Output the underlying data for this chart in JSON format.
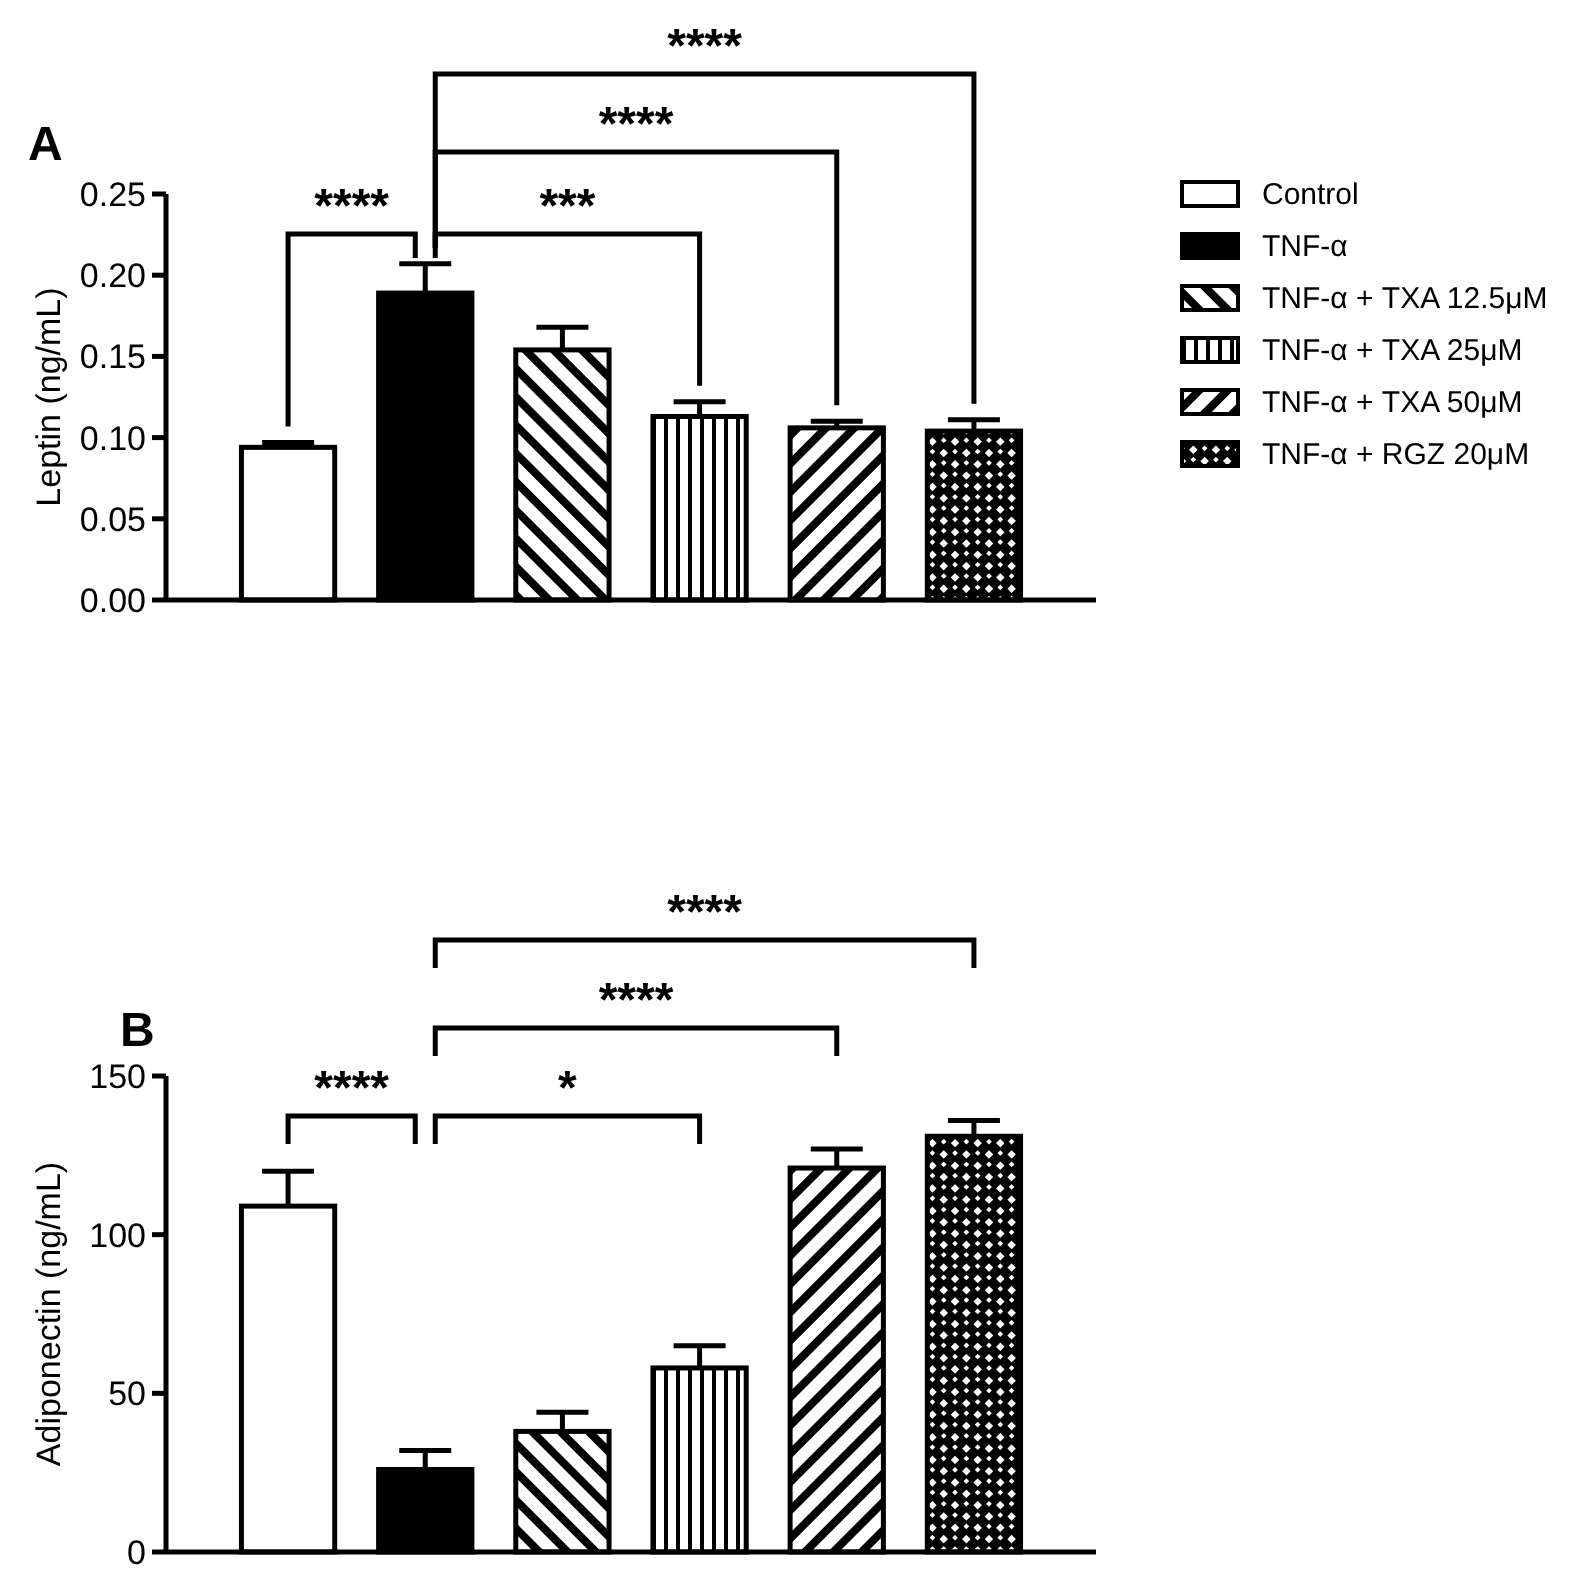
{
  "chart_data": [
    {
      "type": "bar",
      "title": "A",
      "ylabel": "Leptin (ng/mL)",
      "categories": [
        null,
        null,
        null,
        null,
        null,
        null
      ],
      "ylim": [
        0,
        0.25
      ],
      "yticks": [
        {
          "value": 0,
          "label": "0.00"
        },
        {
          "value": 0.05,
          "label": "0.05"
        },
        {
          "value": 0.1,
          "label": "0.10"
        },
        {
          "value": 0.15,
          "label": "0.15"
        },
        {
          "value": 0.2,
          "label": "0.20"
        },
        {
          "value": 0.25,
          "label": "0.25"
        }
      ],
      "legend": "right",
      "grid": false,
      "series": [
        {
          "name": "Control",
          "color": "#ffffff",
          "values": [
            0.094,
            null,
            null,
            null,
            null,
            null
          ],
          "errors": [
            0.003,
            null,
            null,
            null,
            null,
            null
          ]
        },
        {
          "name": "TNF-α",
          "color": "#000000",
          "values": [
            null,
            0.189,
            null,
            null,
            null,
            null
          ],
          "errors": [
            null,
            0.018,
            null,
            null,
            null,
            null
          ]
        },
        {
          "name": "TNF-α + TXA 12.5μM",
          "color": "#000000",
          "values": [
            null,
            null,
            0.154,
            null,
            null,
            null
          ],
          "errors": [
            null,
            null,
            0.014,
            null,
            null,
            null
          ]
        },
        {
          "name": "TNF-α + TXA 25μM",
          "color": "#000000",
          "values": [
            null,
            null,
            null,
            0.113,
            null,
            null
          ],
          "errors": [
            null,
            null,
            null,
            0.009,
            null,
            null
          ]
        },
        {
          "name": "TNF-α + TXA 50μM",
          "color": "#000000",
          "values": [
            null,
            null,
            null,
            null,
            0.106,
            null
          ],
          "errors": [
            null,
            null,
            null,
            null,
            0.004,
            null
          ]
        },
        {
          "name": "TNF-α + RGZ 20μM",
          "color": "#000000",
          "values": [
            null,
            null,
            null,
            null,
            null,
            0.104
          ],
          "errors": [
            null,
            null,
            null,
            null,
            null,
            0.007
          ]
        }
      ],
      "annotations": [
        "****",
        "***",
        "****",
        "****"
      ]
    },
    {
      "type": "bar",
      "title": "B",
      "ylabel": "Adiponectin (ng/mL)",
      "categories": [
        null,
        null,
        null,
        null,
        null,
        null
      ],
      "ylim": [
        0,
        150
      ],
      "yticks": [
        0,
        50,
        100,
        150
      ],
      "legend": false,
      "grid": false,
      "series": [
        {
          "colors": [
            "#ffffff",
            "#000000",
            "#000000",
            "#000000",
            "#000000",
            "#000000"
          ],
          "values": [
            109,
            26,
            38,
            58,
            121,
            131
          ],
          "errors": [
            11,
            6,
            6,
            7,
            6,
            5
          ]
        }
      ],
      "annotations": [
        "****",
        "*",
        "****",
        "****"
      ]
    }
  ]
}
